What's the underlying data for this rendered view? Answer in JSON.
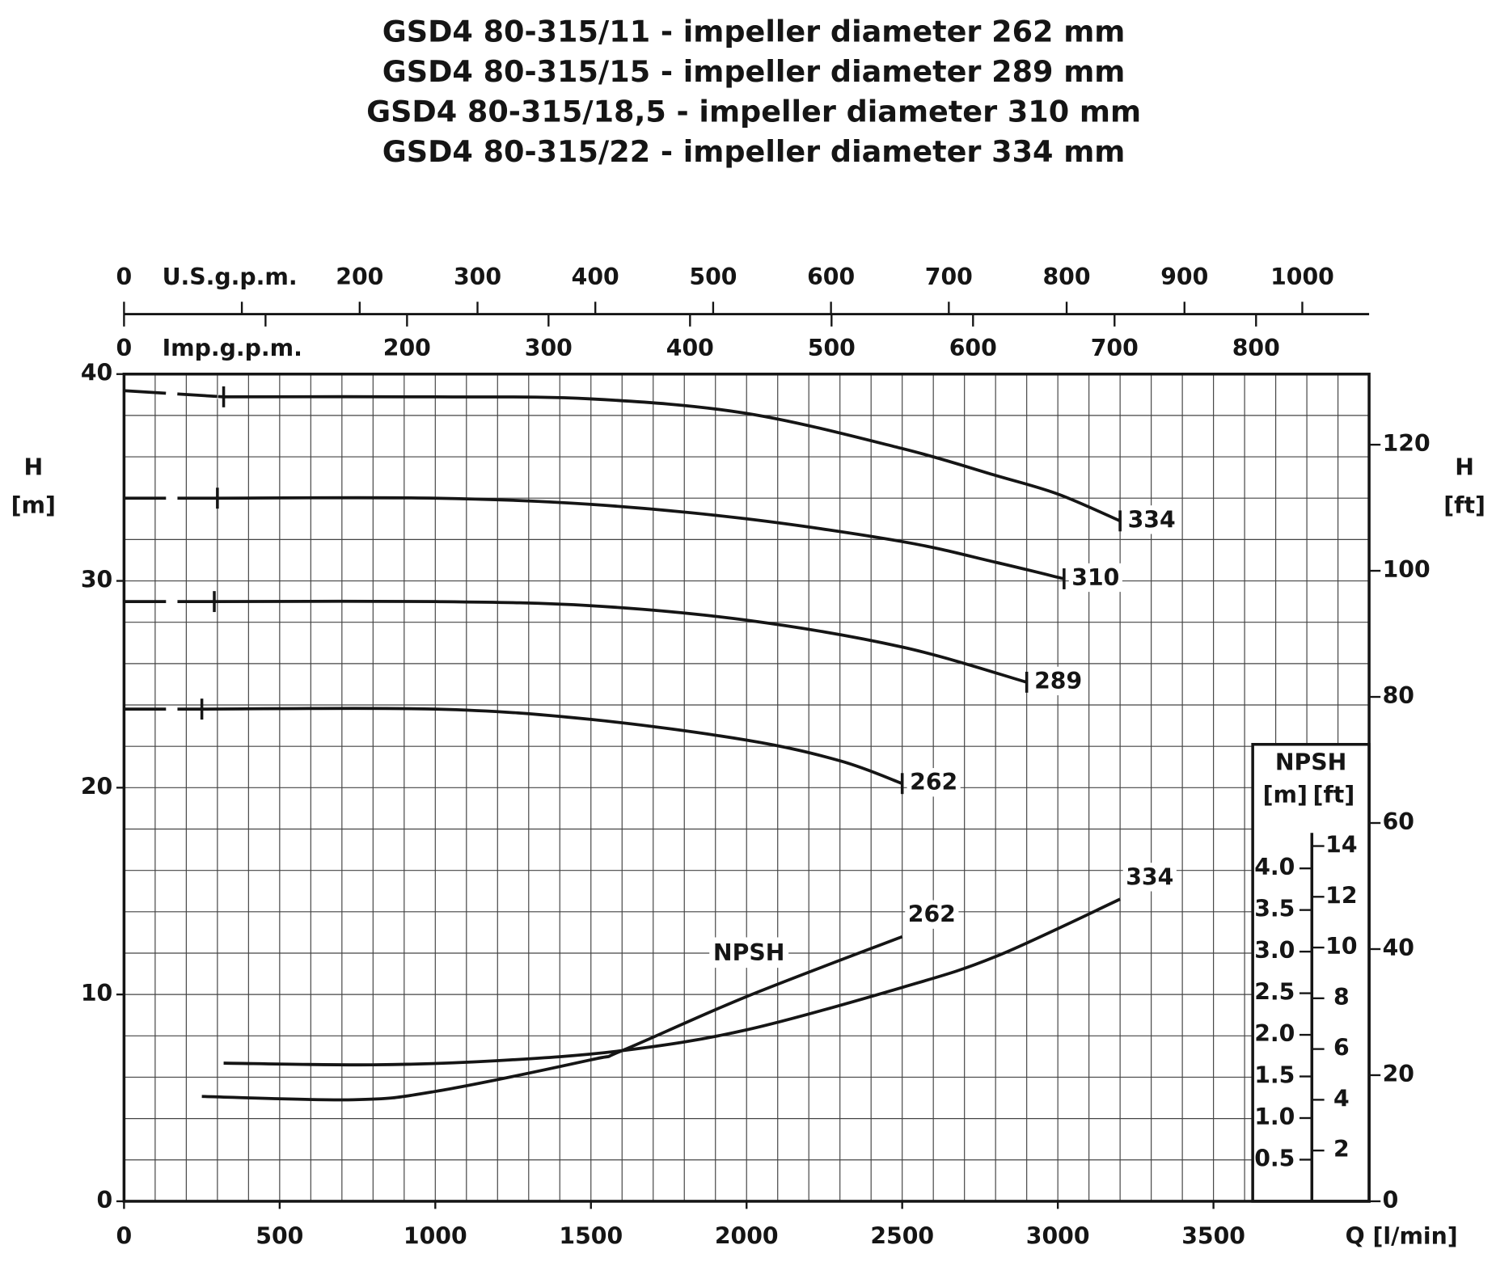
{
  "chart_data": {
    "type": "line",
    "title": [
      "GSD4 80-315/11 - impeller diameter 262 mm",
      "GSD4 80-315/15 - impeller diameter 289 mm",
      "GSD4 80-315/18,5 - impeller diameter 310 mm",
      "GSD4 80-315/22 - impeller diameter 334 mm"
    ],
    "xlabel": "Q [l/min]",
    "ylabel": {
      "symbol": "H",
      "unit": "[m]"
    },
    "y2label": {
      "symbol": "H",
      "unit": "[ft]"
    },
    "xlim": [
      0,
      4000
    ],
    "xticks": [
      0,
      500,
      1000,
      1500,
      2000,
      2500,
      3000,
      3500
    ],
    "ylim": [
      0,
      40
    ],
    "yticks": [
      0,
      10,
      20,
      30,
      40
    ],
    "y2lim": [
      0,
      131.2
    ],
    "y2ticks": [
      0,
      20,
      40,
      60,
      80,
      100,
      120
    ],
    "grid": {
      "x_step": 100,
      "y_step": 2
    },
    "top_axes": [
      {
        "label": "U.S.g.p.m.",
        "lim": [
          0,
          1056.7
        ],
        "ticks": [
          0,
          200,
          300,
          400,
          500,
          600,
          700,
          800,
          900,
          1000
        ],
        "minor_ticks": [
          100
        ]
      },
      {
        "label": "Imp.g.p.m.",
        "lim": [
          0,
          879.9
        ],
        "ticks": [
          0,
          200,
          300,
          400,
          500,
          600,
          700,
          800
        ],
        "minor_ticks": [
          100
        ]
      }
    ],
    "npsh_axis": {
      "title": "NPSH",
      "units": [
        "[m]",
        "[ft]"
      ],
      "lim": [
        0,
        9.94
      ],
      "ticks": [
        0.5,
        {
          "value": 1.0,
          "label": "1.0"
        },
        1.5,
        {
          "value": 2.0,
          "label": "2.0"
        },
        2.5,
        {
          "value": 3.0,
          "label": "3.0"
        },
        3.5,
        {
          "value": 4.0,
          "label": "4.0"
        }
      ],
      "ft_lim": [
        0,
        32.6
      ],
      "ft_ticks": [
        2,
        4,
        6,
        8,
        10,
        12,
        14
      ]
    },
    "annotation": "NPSH",
    "series": [
      {
        "name": "334",
        "color": "#151515",
        "dashed_first_segment": true,
        "x": [
          0,
          320,
          1000,
          1500,
          2000,
          2500,
          2800,
          3000,
          3200
        ],
        "values": [
          39.2,
          38.9,
          38.9,
          38.8,
          38.1,
          36.4,
          35.1,
          34.2,
          32.9
        ]
      },
      {
        "name": "310",
        "color": "#151515",
        "dashed_first_segment": true,
        "x": [
          0,
          300,
          1000,
          1500,
          2000,
          2500,
          2800,
          3020
        ],
        "values": [
          34.0,
          34.0,
          34.0,
          33.7,
          33.0,
          31.9,
          30.9,
          30.1
        ]
      },
      {
        "name": "289",
        "color": "#151515",
        "dashed_first_segment": true,
        "x": [
          0,
          290,
          1000,
          1500,
          2000,
          2500,
          2900
        ],
        "values": [
          29.0,
          29.0,
          29.0,
          28.8,
          28.1,
          26.8,
          25.1
        ]
      },
      {
        "name": "262",
        "color": "#151515",
        "dashed_first_segment": true,
        "x": [
          0,
          250,
          1000,
          1500,
          2000,
          2300,
          2500
        ],
        "values": [
          23.8,
          23.8,
          23.8,
          23.3,
          22.3,
          21.3,
          20.2
        ]
      },
      {
        "name": "262",
        "color": "#151515",
        "axis": "npsh",
        "x": [
          250,
          735,
          1000,
          1500,
          1600,
          2000,
          2500
        ],
        "values": [
          1.26,
          1.22,
          1.32,
          1.7,
          1.81,
          2.46,
          3.18
        ]
      },
      {
        "name": "334",
        "color": "#151515",
        "axis": "npsh",
        "x": [
          320,
          800,
          1200,
          1600,
          2000,
          2500,
          2800,
          3200
        ],
        "values": [
          1.66,
          1.64,
          1.69,
          1.81,
          2.06,
          2.57,
          2.94,
          3.63
        ]
      }
    ]
  }
}
